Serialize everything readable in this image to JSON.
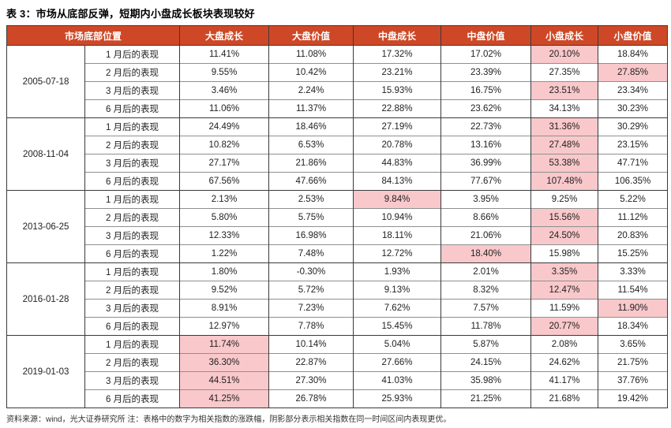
{
  "title": "表 3：市场从底部反弹，短期内小盘成长板块表现较好",
  "colors": {
    "header_bg": "#CE4827",
    "header_text": "#FFFFFF",
    "highlight_bg": "#F9C8CB",
    "highlight_text": "#C00000",
    "line_dark": "#3a3a3a"
  },
  "table": {
    "group_header": "市场底部位置",
    "columns": [
      "大盘成长",
      "大盘价值",
      "中盘成长",
      "中盘价值",
      "小盘成长",
      "小盘价值"
    ],
    "groups": [
      {
        "date": "2005-07-18",
        "rows": [
          {
            "period": "1 月后的表现",
            "values": [
              "11.41%",
              "11.08%",
              "17.32%",
              "17.02%",
              "20.10%",
              "18.84%"
            ],
            "highlight": [
              4
            ]
          },
          {
            "period": "2 月后的表现",
            "values": [
              "9.55%",
              "10.42%",
              "23.21%",
              "23.39%",
              "27.35%",
              "27.85%"
            ],
            "highlight": [
              5
            ]
          },
          {
            "period": "3 月后的表现",
            "values": [
              "3.46%",
              "2.24%",
              "15.93%",
              "16.75%",
              "23.51%",
              "23.34%"
            ],
            "highlight": [
              4
            ]
          },
          {
            "period": "6 月后的表现",
            "values": [
              "11.06%",
              "11.37%",
              "22.88%",
              "23.62%",
              "34.13%",
              "30.23%"
            ],
            "highlight": []
          }
        ]
      },
      {
        "date": "2008-11-04",
        "rows": [
          {
            "period": "1 月后的表现",
            "values": [
              "24.49%",
              "18.46%",
              "27.19%",
              "22.73%",
              "31.36%",
              "30.29%"
            ],
            "highlight": [
              4
            ]
          },
          {
            "period": "2 月后的表现",
            "values": [
              "10.82%",
              "6.53%",
              "20.78%",
              "13.16%",
              "27.48%",
              "23.15%"
            ],
            "highlight": [
              4
            ]
          },
          {
            "period": "3 月后的表现",
            "values": [
              "27.17%",
              "21.86%",
              "44.83%",
              "36.99%",
              "53.38%",
              "47.71%"
            ],
            "highlight": [
              4
            ]
          },
          {
            "period": "6 月后的表现",
            "values": [
              "67.56%",
              "47.66%",
              "84.13%",
              "77.67%",
              "107.48%",
              "106.35%"
            ],
            "highlight": [
              4
            ]
          }
        ]
      },
      {
        "date": "2013-06-25",
        "rows": [
          {
            "period": "1 月后的表现",
            "values": [
              "2.13%",
              "2.53%",
              "9.84%",
              "3.95%",
              "9.25%",
              "5.22%"
            ],
            "highlight": [
              2
            ]
          },
          {
            "period": "2 月后的表现",
            "values": [
              "5.80%",
              "5.75%",
              "10.94%",
              "8.66%",
              "15.56%",
              "11.12%"
            ],
            "highlight": [
              4
            ]
          },
          {
            "period": "3 月后的表现",
            "values": [
              "12.33%",
              "16.98%",
              "18.11%",
              "21.06%",
              "24.50%",
              "20.83%"
            ],
            "highlight": [
              4
            ]
          },
          {
            "period": "6 月后的表现",
            "values": [
              "1.22%",
              "7.48%",
              "12.72%",
              "18.40%",
              "15.98%",
              "15.25%"
            ],
            "highlight": [
              3
            ]
          }
        ]
      },
      {
        "date": "2016-01-28",
        "rows": [
          {
            "period": "1 月后的表现",
            "values": [
              "1.80%",
              "-0.30%",
              "1.93%",
              "2.01%",
              "3.35%",
              "3.33%"
            ],
            "highlight": [
              4
            ]
          },
          {
            "period": "2 月后的表现",
            "values": [
              "9.52%",
              "5.72%",
              "9.13%",
              "8.32%",
              "12.47%",
              "11.54%"
            ],
            "highlight": [
              4
            ]
          },
          {
            "period": "3 月后的表现",
            "values": [
              "8.91%",
              "7.23%",
              "7.62%",
              "7.57%",
              "11.59%",
              "11.90%"
            ],
            "highlight": [
              5
            ]
          },
          {
            "period": "6 月后的表现",
            "values": [
              "12.97%",
              "7.78%",
              "15.45%",
              "11.78%",
              "20.77%",
              "18.34%"
            ],
            "highlight": [
              4
            ]
          }
        ]
      },
      {
        "date": "2019-01-03",
        "rows": [
          {
            "period": "1 月后的表现",
            "values": [
              "11.74%",
              "10.14%",
              "5.04%",
              "5.87%",
              "2.08%",
              "3.65%"
            ],
            "highlight": [
              0
            ]
          },
          {
            "period": "2 月后的表现",
            "values": [
              "36.30%",
              "22.87%",
              "27.66%",
              "24.15%",
              "24.62%",
              "21.75%"
            ],
            "highlight": [
              0
            ]
          },
          {
            "period": "3 月后的表现",
            "values": [
              "44.51%",
              "27.30%",
              "41.03%",
              "35.98%",
              "41.17%",
              "37.76%"
            ],
            "highlight": [
              0
            ]
          },
          {
            "period": "6 月后的表现",
            "values": [
              "41.25%",
              "26.78%",
              "25.93%",
              "21.25%",
              "21.68%",
              "19.42%"
            ],
            "highlight": [
              0
            ]
          }
        ]
      }
    ]
  },
  "footer": "资料来源：wind，光大证券研究所  注：表格中的数字为相关指数的涨跌幅，阴影部分表示相关指数在同一时间区间内表现更优。"
}
